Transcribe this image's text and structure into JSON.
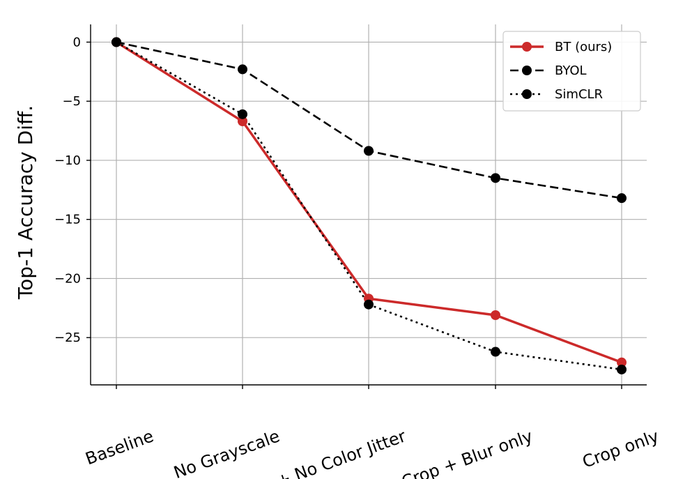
{
  "chart_data": {
    "type": "line",
    "categories": [
      "Baseline",
      "No Grayscale",
      "+ No Color Jitter",
      "Crop + Blur only",
      "Crop only"
    ],
    "ylabel": "Top-1 Accuracy Diff.",
    "xlabel": "",
    "ylim": [
      -29,
      1.5
    ],
    "yticks": [
      0,
      -5,
      -10,
      -15,
      -20,
      -25
    ],
    "ytick_labels": [
      "0",
      "−5",
      "−10",
      "−15",
      "−20",
      "−25"
    ],
    "grid": true,
    "legend_position": "top-right",
    "series": [
      {
        "name": "BT (ours)",
        "values": [
          0,
          -6.7,
          -21.7,
          -23.1,
          -27.1
        ],
        "color": "#cc2a2a",
        "line_style": "solid"
      },
      {
        "name": "BYOL",
        "values": [
          0,
          -2.3,
          -9.2,
          -11.5,
          -13.2
        ],
        "color": "#000000",
        "line_style": "dashed"
      },
      {
        "name": "SimCLR",
        "values": [
          0,
          -6.1,
          -22.2,
          -26.2,
          -27.7
        ],
        "color": "#000000",
        "line_style": "dotted"
      }
    ]
  }
}
